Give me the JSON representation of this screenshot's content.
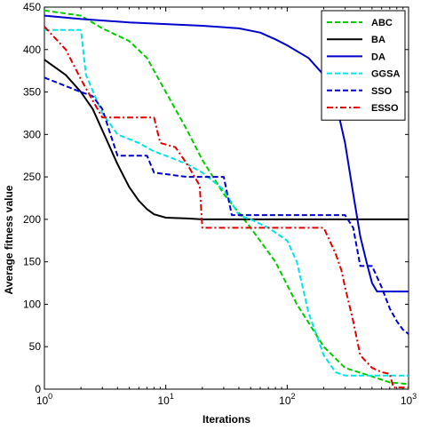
{
  "chart_data": {
    "type": "line",
    "title": "",
    "xlabel": "Iterations",
    "ylabel": "Average fitness value",
    "xscale": "log",
    "xlim": [
      1,
      1000
    ],
    "ylim": [
      0,
      450
    ],
    "grid": false,
    "legend_position": "top-right",
    "x_ticks": [
      {
        "value": 1,
        "base": "10",
        "exp": "0"
      },
      {
        "value": 10,
        "base": "10",
        "exp": "1"
      },
      {
        "value": 100,
        "base": "10",
        "exp": "2"
      },
      {
        "value": 1000,
        "base": "10",
        "exp": "3"
      }
    ],
    "y_ticks": [
      "0",
      "50",
      "100",
      "150",
      "200",
      "250",
      "300",
      "350",
      "400",
      "450"
    ],
    "series": [
      {
        "name": "ABC",
        "color": "#00cc00",
        "dash": "dashed",
        "points": [
          [
            1,
            446
          ],
          [
            2,
            440
          ],
          [
            3,
            425
          ],
          [
            5,
            410
          ],
          [
            7,
            390
          ],
          [
            10,
            350
          ],
          [
            15,
            305
          ],
          [
            20,
            270
          ],
          [
            30,
            230
          ],
          [
            50,
            190
          ],
          [
            80,
            150
          ],
          [
            120,
            100
          ],
          [
            200,
            50
          ],
          [
            300,
            25
          ],
          [
            500,
            15
          ],
          [
            700,
            8
          ],
          [
            1000,
            6
          ]
        ]
      },
      {
        "name": "BA",
        "color": "#000000",
        "dash": "solid",
        "points": [
          [
            1,
            388
          ],
          [
            1.5,
            370
          ],
          [
            2,
            350
          ],
          [
            2.5,
            330
          ],
          [
            3,
            305
          ],
          [
            4,
            265
          ],
          [
            5,
            238
          ],
          [
            6,
            222
          ],
          [
            7,
            212
          ],
          [
            8,
            206
          ],
          [
            10,
            202
          ],
          [
            15,
            201
          ],
          [
            20,
            200
          ],
          [
            50,
            200
          ],
          [
            100,
            200
          ],
          [
            300,
            200
          ],
          [
            1000,
            200
          ]
        ]
      },
      {
        "name": "DA",
        "color": "#0000cc",
        "dash": "solid",
        "points": [
          [
            1,
            440
          ],
          [
            2,
            436
          ],
          [
            5,
            432
          ],
          [
            10,
            430
          ],
          [
            20,
            428
          ],
          [
            40,
            425
          ],
          [
            60,
            420
          ],
          [
            80,
            412
          ],
          [
            100,
            405
          ],
          [
            150,
            390
          ],
          [
            200,
            370
          ],
          [
            250,
            340
          ],
          [
            300,
            290
          ],
          [
            350,
            230
          ],
          [
            400,
            180
          ],
          [
            450,
            150
          ],
          [
            500,
            125
          ],
          [
            550,
            115
          ],
          [
            700,
            115
          ],
          [
            1000,
            115
          ]
        ]
      },
      {
        "name": "GGSA",
        "color": "#00e5e5",
        "dash": "dashed",
        "points": [
          [
            1,
            423
          ],
          [
            1.5,
            423
          ],
          [
            2,
            423
          ],
          [
            2.2,
            370
          ],
          [
            3,
            325
          ],
          [
            4,
            300
          ],
          [
            6,
            290
          ],
          [
            8,
            280
          ],
          [
            10,
            275
          ],
          [
            15,
            265
          ],
          [
            20,
            255
          ],
          [
            30,
            235
          ],
          [
            40,
            205
          ],
          [
            50,
            200
          ],
          [
            70,
            190
          ],
          [
            100,
            175
          ],
          [
            120,
            150
          ],
          [
            150,
            90
          ],
          [
            200,
            40
          ],
          [
            250,
            20
          ],
          [
            300,
            16
          ],
          [
            1000,
            16
          ]
        ]
      },
      {
        "name": "SSO",
        "color": "#0000cc",
        "dash": "dashed",
        "points": [
          [
            1,
            367
          ],
          [
            1.5,
            357
          ],
          [
            2,
            350
          ],
          [
            2.5,
            345
          ],
          [
            3,
            330
          ],
          [
            3.5,
            300
          ],
          [
            4,
            275
          ],
          [
            5,
            275
          ],
          [
            7,
            275
          ],
          [
            8,
            255
          ],
          [
            15,
            250
          ],
          [
            20,
            250
          ],
          [
            30,
            250
          ],
          [
            35,
            205
          ],
          [
            50,
            205
          ],
          [
            100,
            205
          ],
          [
            300,
            205
          ],
          [
            350,
            190
          ],
          [
            400,
            145
          ],
          [
            500,
            145
          ],
          [
            600,
            120
          ],
          [
            700,
            95
          ],
          [
            800,
            80
          ],
          [
            900,
            70
          ],
          [
            1000,
            65
          ]
        ]
      },
      {
        "name": "ESSO",
        "color": "#e00000",
        "dash": "dashdot",
        "points": [
          [
            1,
            427
          ],
          [
            1.5,
            400
          ],
          [
            2,
            365
          ],
          [
            2.5,
            340
          ],
          [
            3,
            320
          ],
          [
            5,
            320
          ],
          [
            8,
            320
          ],
          [
            9,
            290
          ],
          [
            12,
            285
          ],
          [
            15,
            265
          ],
          [
            19,
            240
          ],
          [
            20,
            190
          ],
          [
            30,
            190
          ],
          [
            50,
            190
          ],
          [
            100,
            190
          ],
          [
            200,
            190
          ],
          [
            250,
            160
          ],
          [
            280,
            140
          ],
          [
            300,
            120
          ],
          [
            350,
            80
          ],
          [
            400,
            40
          ],
          [
            500,
            25
          ],
          [
            600,
            20
          ],
          [
            700,
            18
          ],
          [
            750,
            2
          ],
          [
            1000,
            2
          ]
        ]
      }
    ]
  }
}
